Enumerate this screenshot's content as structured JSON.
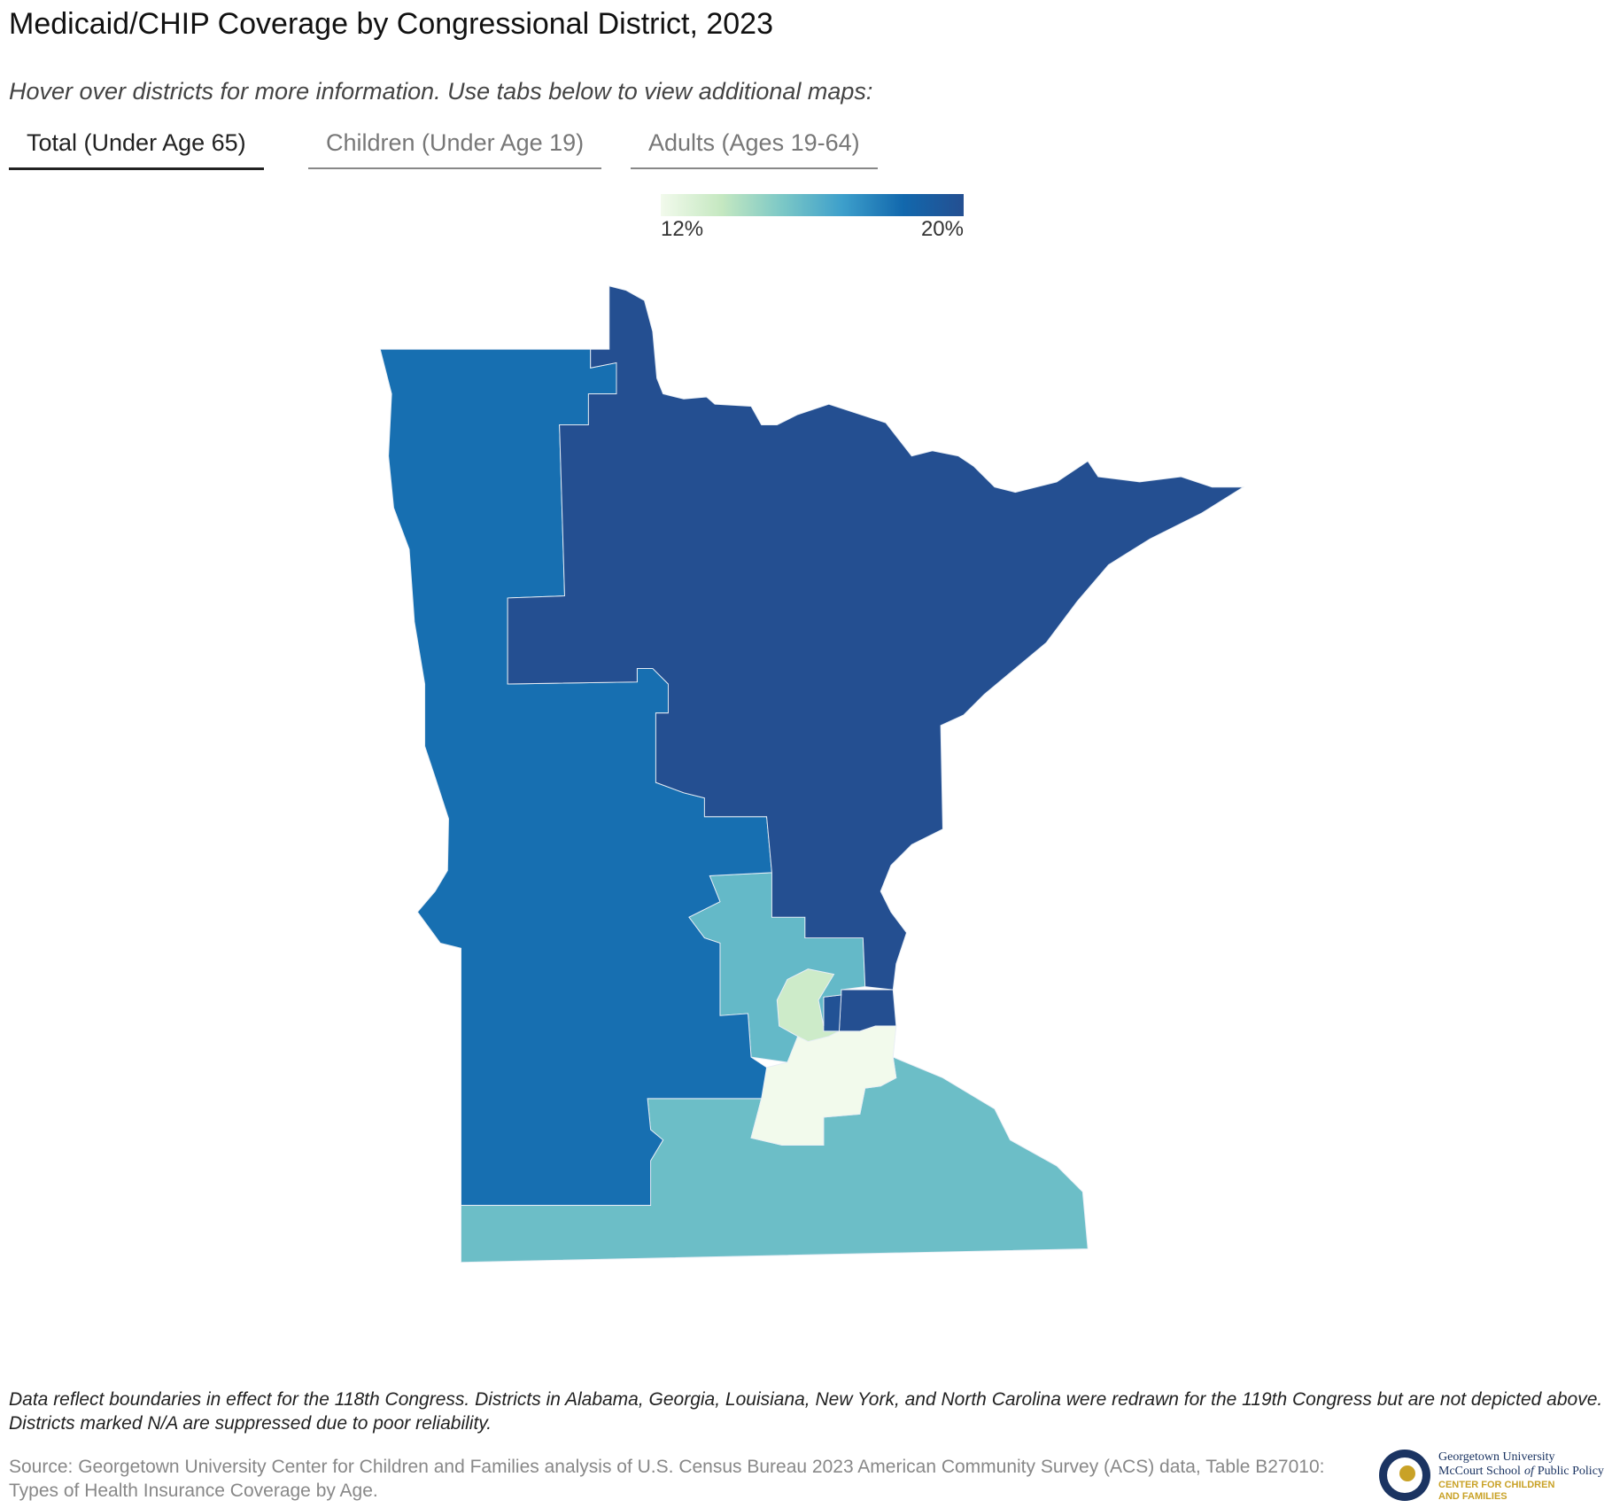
{
  "chart_data": {
    "type": "choropleth",
    "title": "Medicaid/CHIP Coverage by Congressional District, 2023",
    "subtitle": "Hover over districts for more information. Use tabs below to view additional maps:",
    "tabs": [
      "Total (Under Age 65)",
      "Children (Under Age 19)",
      "Adults (Ages 19-64)"
    ],
    "active_tab": 0,
    "values": [
      15.6,
      12.0,
      13.3,
      20.0,
      19.8,
      15.8,
      18.2,
      20.0
    ],
    "colorlim": [
      12,
      20
    ],
    "colorticks": [
      {
        "value": 12,
        "label": "12%"
      },
      {
        "value": 20,
        "label": "20%"
      }
    ],
    "colors": [
      "#f2faec",
      "#c5e8c1",
      "#7cc8c6",
      "#3d9fcb",
      "#1268ad",
      "#244f91"
    ],
    "note": "Data reflect boundaries in effect for the 118th Congress. Districts in Alabama, Georgia, Louisiana, New York, and North Carolina were redrawn for the 119th Congress but are not depicted above. Districts marked N/A are suppressed due to poor reliability.",
    "source": "Source: Georgetown University Center for Children and Families analysis of U.S. Census Bureau 2023 American Community Survey (ACS) data, Table B27010: Types of Health Insurance Coverage by Age.",
    "logo": [
      "Georgetown University",
      "McCourt School",
      "of",
      "Public Policy",
      "CENTER FOR CHILDREN",
      "AND FAMILIES"
    ]
  }
}
